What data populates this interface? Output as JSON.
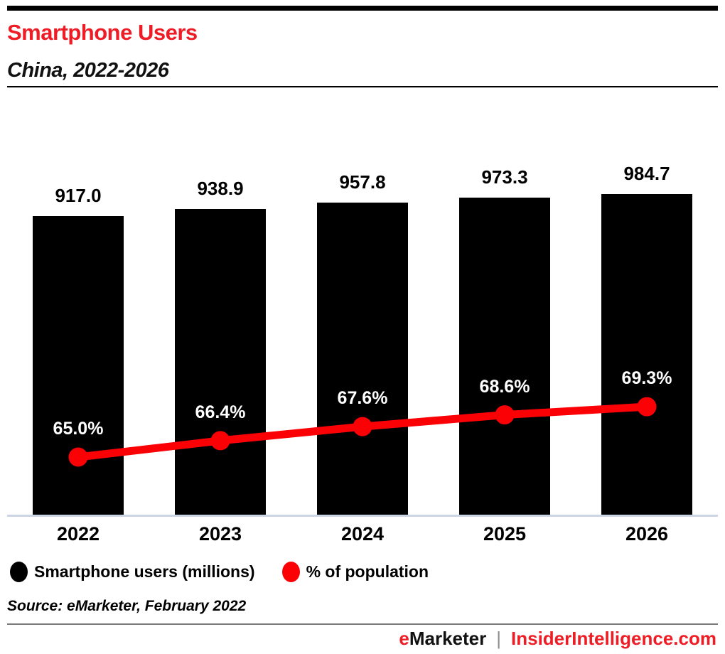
{
  "header": {
    "title": "Smartphone Users",
    "subtitle": "China, 2022-2026"
  },
  "chart_data": {
    "type": "bar",
    "title": "Smartphone Users",
    "subtitle": "China, 2022-2026",
    "categories": [
      "2022",
      "2023",
      "2024",
      "2025",
      "2026"
    ],
    "series": [
      {
        "name": "Smartphone users (millions)",
        "type": "bar",
        "color": "#000000",
        "values": [
          917.0,
          938.9,
          957.8,
          973.3,
          984.7
        ],
        "labels": [
          "917.0",
          "938.9",
          "957.8",
          "973.3",
          "984.7"
        ]
      },
      {
        "name": "% of population",
        "type": "line",
        "color": "#fb0005",
        "values": [
          65.0,
          66.4,
          67.6,
          68.6,
          69.3
        ],
        "labels": [
          "65.0%",
          "66.4%",
          "67.6%",
          "68.6%",
          "69.3%"
        ]
      }
    ],
    "xlabel": "",
    "ylabel": "",
    "ylim": [
      0,
      1230
    ],
    "grid": false,
    "legend_position": "bottom-left"
  },
  "legend": {
    "items": [
      {
        "label": "Smartphone users (millions)",
        "color": "#000000"
      },
      {
        "label": "% of population",
        "color": "#fb0005"
      }
    ]
  },
  "source": {
    "text": "Source: eMarketer, February 2022"
  },
  "footer": {
    "brand_e": "e",
    "brand_rest": "Marketer",
    "separator": "|",
    "site": "InsiderIntelligence.com"
  },
  "colors": {
    "title_red": "#ee1c25",
    "line_red": "#fb0005",
    "bar_black": "#000000",
    "axis_line": "#ccd4e6",
    "footer_rule_gray": "#7a7a7a"
  }
}
